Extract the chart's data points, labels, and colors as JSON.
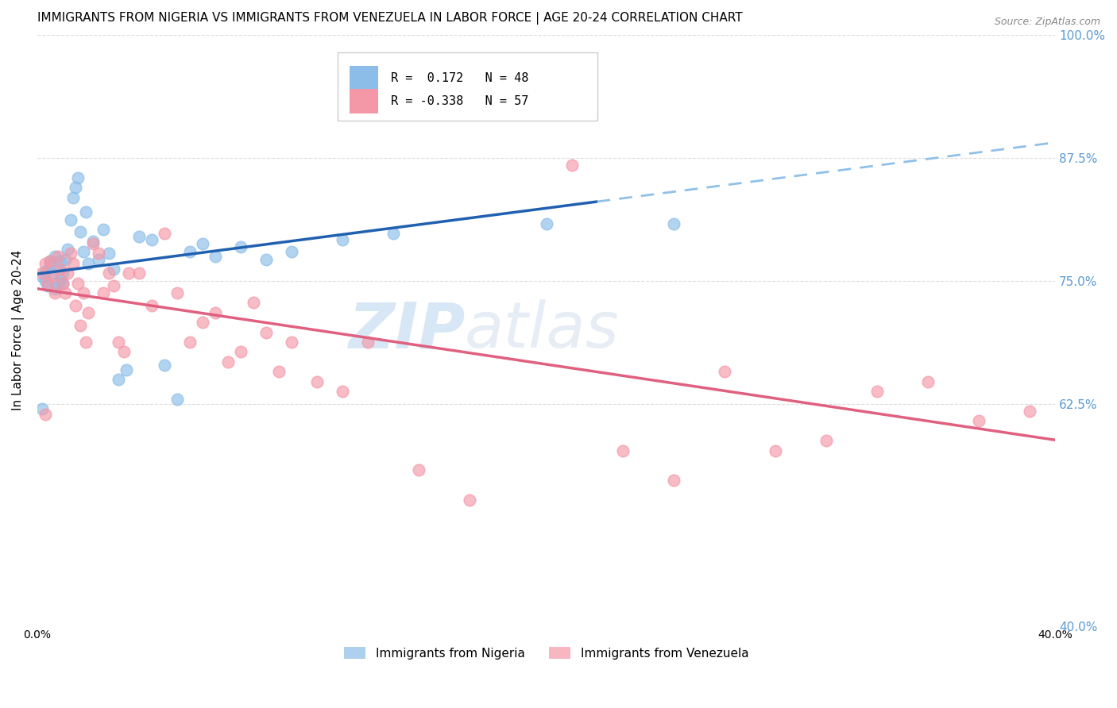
{
  "title": "IMMIGRANTS FROM NIGERIA VS IMMIGRANTS FROM VENEZUELA IN LABOR FORCE | AGE 20-24 CORRELATION CHART",
  "source": "Source: ZipAtlas.com",
  "ylabel": "In Labor Force | Age 20-24",
  "xlim": [
    0.0,
    0.4
  ],
  "ylim": [
    0.4,
    1.0
  ],
  "xticks": [
    0.0,
    0.1,
    0.2,
    0.3,
    0.4
  ],
  "xtick_labels": [
    "0.0%",
    "",
    "",
    "",
    "40.0%"
  ],
  "ytick_labels": [
    "40.0%",
    "62.5%",
    "75.0%",
    "87.5%",
    "100.0%"
  ],
  "yticks": [
    0.4,
    0.625,
    0.75,
    0.875,
    1.0
  ],
  "nigeria_color": "#8BBDE8",
  "venezuela_color": "#F498A8",
  "nigeria_line_color": "#2060B0",
  "venezuela_line_color": "#E06080",
  "nigeria_dash_color": "#90C0E8",
  "R_nigeria": 0.172,
  "N_nigeria": 48,
  "R_venezuela": -0.338,
  "N_venezuela": 57,
  "watermark_zip": "ZIP",
  "watermark_atlas": "atlas",
  "background_color": "#FFFFFF",
  "grid_color": "#DDDDDD",
  "title_fontsize": 11,
  "axis_label_fontsize": 11,
  "tick_fontsize": 10,
  "right_tick_color": "#5B9BD5"
}
